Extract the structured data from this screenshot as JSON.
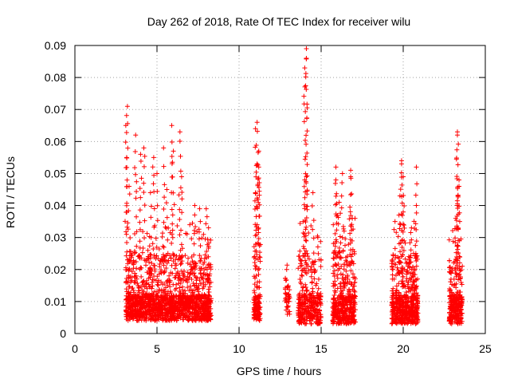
{
  "chart_data": {
    "type": "scatter",
    "title": "Day 262 of 2018, Rate Of TEC Index for receiver wilu",
    "xlabel": "GPS time / hours",
    "ylabel": "ROTI / TECUs",
    "xlim": [
      0,
      25
    ],
    "ylim": [
      0,
      0.09
    ],
    "xticks": [
      0,
      5,
      10,
      15,
      20,
      25
    ],
    "xtick_labels": [
      "0",
      "5",
      "10",
      "15",
      "20",
      "25"
    ],
    "yticks": [
      0,
      0.01,
      0.02,
      0.03,
      0.04,
      0.05,
      0.06,
      0.07,
      0.08,
      0.09
    ],
    "ytick_labels": [
      "0",
      "0.01",
      "0.02",
      "0.03",
      "0.04",
      "0.05",
      "0.06",
      "0.07",
      "0.08",
      "0.09"
    ],
    "grid": true,
    "marker": "+",
    "color": "#ff0000",
    "clusters": [
      {
        "x_start": 3.1,
        "x_end": 8.3,
        "y_base_min": 0.004,
        "y_base_max": 0.012,
        "y_upper": 0.03,
        "count": 1500,
        "peaks": [
          [
            3.2,
            0.071
          ],
          [
            3.1,
            0.065
          ],
          [
            3.7,
            0.062
          ],
          [
            4.2,
            0.058
          ],
          [
            4.8,
            0.055
          ],
          [
            5.9,
            0.065
          ],
          [
            6.4,
            0.063
          ],
          [
            5.4,
            0.058
          ],
          [
            6.0,
            0.057
          ],
          [
            4.0,
            0.056
          ],
          [
            5.0,
            0.05
          ],
          [
            6.5,
            0.049
          ],
          [
            3.3,
            0.046
          ],
          [
            7.3,
            0.04
          ],
          [
            7.6,
            0.039
          ],
          [
            8.0,
            0.039
          ],
          [
            4.6,
            0.044
          ],
          [
            5.6,
            0.045
          ]
        ]
      },
      {
        "x_start": 10.9,
        "x_end": 11.3,
        "y_base_min": 0.004,
        "y_base_max": 0.012,
        "y_upper": 0.04,
        "count": 140,
        "peaks": [
          [
            11.1,
            0.066
          ],
          [
            11.0,
            0.064
          ],
          [
            11.2,
            0.057
          ],
          [
            11.1,
            0.053
          ],
          [
            11.2,
            0.052
          ],
          [
            11.0,
            0.044
          ]
        ]
      },
      {
        "x_start": 12.8,
        "x_end": 13.1,
        "y_base_min": 0.006,
        "y_base_max": 0.012,
        "y_upper": 0.02,
        "count": 40,
        "peaks": [
          [
            12.9,
            0.02
          ]
        ]
      },
      {
        "x_start": 13.6,
        "x_end": 15.0,
        "y_base_min": 0.003,
        "y_base_max": 0.012,
        "y_upper": 0.03,
        "count": 320,
        "peaks": [
          [
            14.1,
            0.089
          ],
          [
            14.1,
            0.086
          ],
          [
            14.0,
            0.083
          ],
          [
            14.1,
            0.049
          ],
          [
            14.0,
            0.048
          ],
          [
            14.5,
            0.044
          ],
          [
            13.9,
            0.035
          ],
          [
            14.8,
            0.03
          ]
        ]
      },
      {
        "x_start": 15.7,
        "x_end": 17.1,
        "y_base_min": 0.003,
        "y_base_max": 0.012,
        "y_upper": 0.032,
        "count": 420,
        "peaks": [
          [
            15.9,
            0.052
          ],
          [
            16.8,
            0.051
          ],
          [
            16.3,
            0.05
          ],
          [
            16.8,
            0.049
          ],
          [
            15.9,
            0.048
          ],
          [
            16.1,
            0.041
          ],
          [
            16.9,
            0.036
          ],
          [
            16.4,
            0.032
          ]
        ]
      },
      {
        "x_start": 19.3,
        "x_end": 20.9,
        "y_base_min": 0.003,
        "y_base_max": 0.012,
        "y_upper": 0.03,
        "count": 520,
        "peaks": [
          [
            19.9,
            0.054
          ],
          [
            20.8,
            0.052
          ],
          [
            19.9,
            0.053
          ],
          [
            20.0,
            0.049
          ],
          [
            19.8,
            0.043
          ],
          [
            20.0,
            0.038
          ],
          [
            20.8,
            0.04
          ],
          [
            19.5,
            0.035
          ],
          [
            20.5,
            0.033
          ]
        ]
      },
      {
        "x_start": 22.8,
        "x_end": 23.6,
        "y_base_min": 0.003,
        "y_base_max": 0.012,
        "y_upper": 0.028,
        "count": 260,
        "peaks": [
          [
            23.3,
            0.063
          ],
          [
            23.3,
            0.062
          ],
          [
            23.4,
            0.048
          ],
          [
            23.4,
            0.046
          ],
          [
            23.3,
            0.04
          ],
          [
            23.2,
            0.036
          ],
          [
            23.3,
            0.033
          ]
        ]
      }
    ]
  }
}
